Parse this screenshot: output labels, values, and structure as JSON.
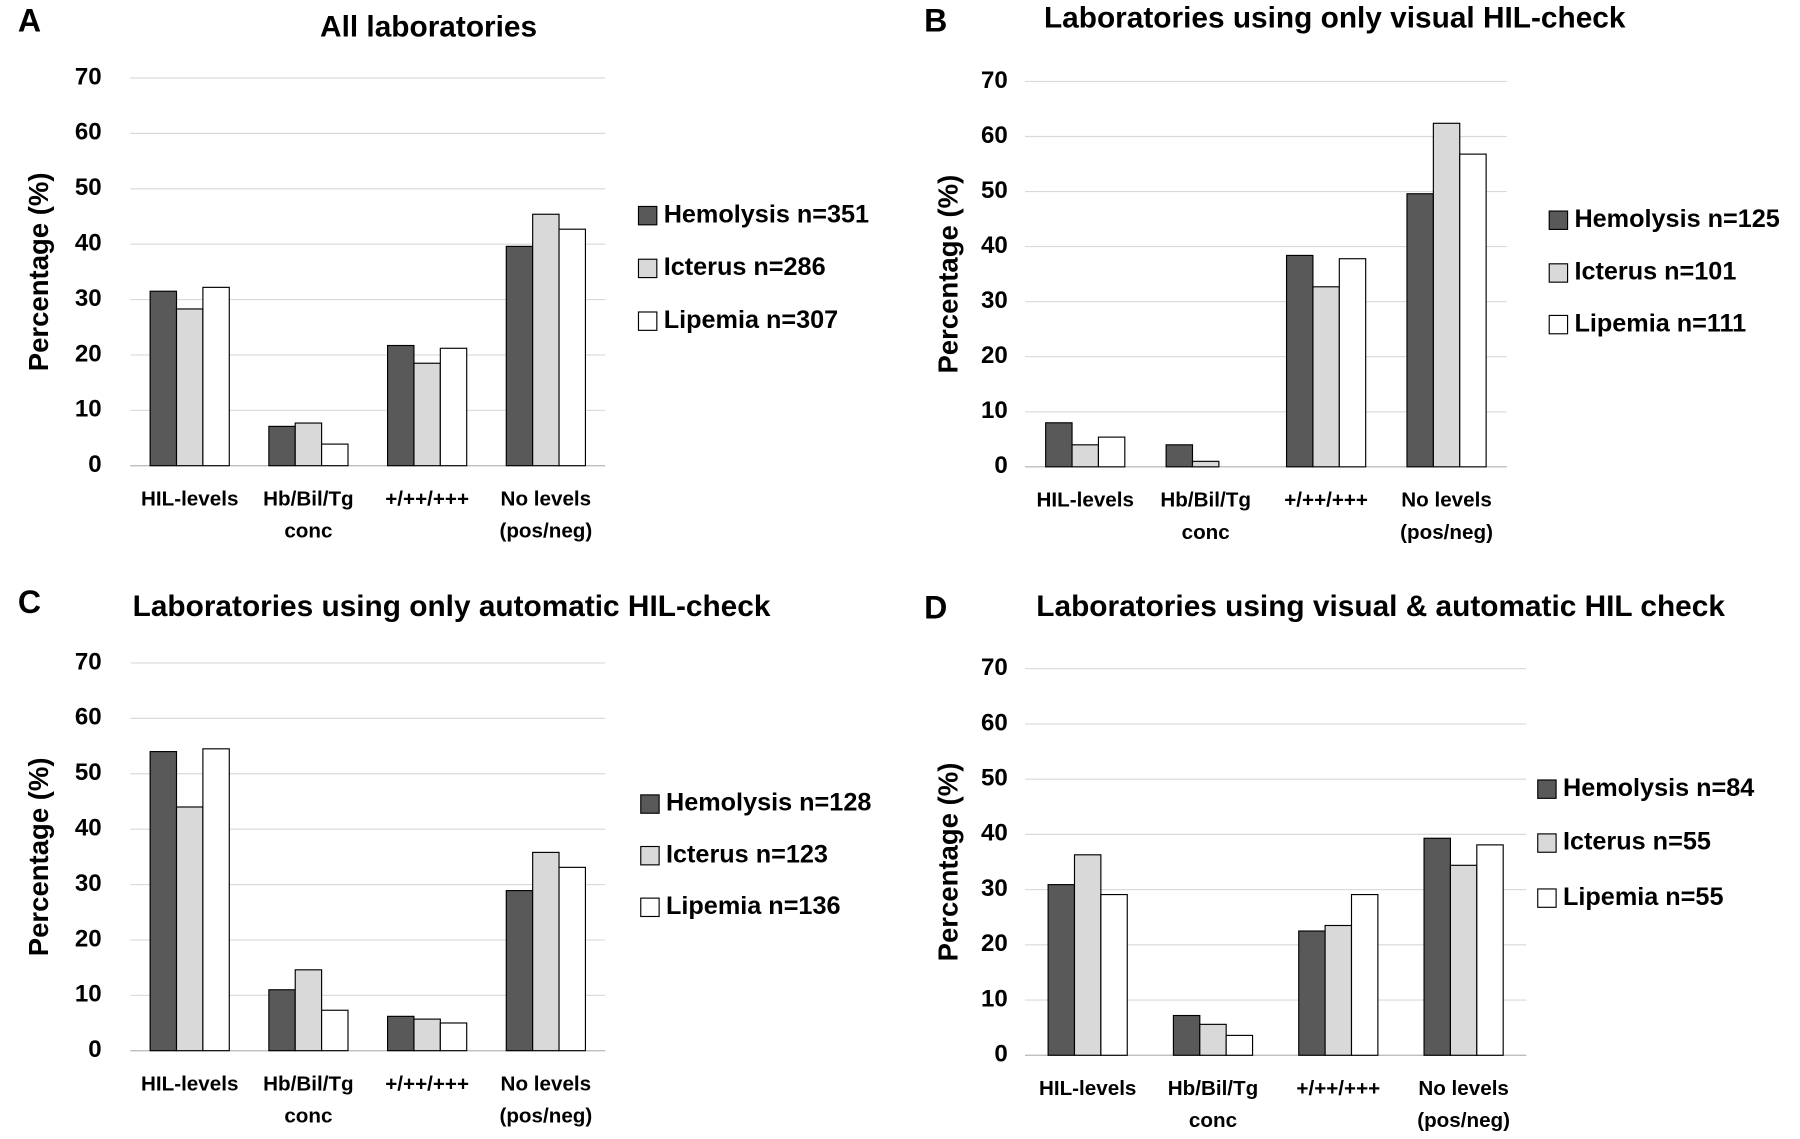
{
  "chart_data": [
    {
      "type": "bar",
      "panel": "A",
      "title": "All laboratories",
      "y_label": "Percentage (%)",
      "categories": [
        [
          "HIL-levels"
        ],
        [
          "Hb/Bil/Tg",
          "conc"
        ],
        [
          "+/++/+++"
        ],
        [
          "No levels",
          "(pos/neg)"
        ]
      ],
      "series": [
        {
          "name": "Hemolysis n=351",
          "color": "#595959",
          "values": [
            31.5,
            7.1,
            21.7,
            39.6
          ]
        },
        {
          "name": "Icterus n=286",
          "color": "#d9d9d9",
          "values": [
            28.3,
            7.7,
            18.5,
            45.4
          ]
        },
        {
          "name": "Lipemia n=307",
          "color": "#ffffff",
          "values": [
            32.2,
            3.9,
            21.2,
            42.7
          ]
        }
      ],
      "ylim": [
        0,
        70
      ],
      "yticks": [
        0,
        10,
        20,
        30,
        40,
        50,
        60,
        70
      ],
      "grid": true,
      "legend": "right"
    },
    {
      "type": "bar",
      "panel": "B",
      "title": "Laboratories using only visual HIL-check",
      "y_label": "Percentage (%)",
      "categories": [
        [
          "HIL-levels"
        ],
        [
          "Hb/Bil/Tg",
          "conc"
        ],
        [
          "+/++/+++"
        ],
        [
          "No levels",
          "(pos/neg)"
        ]
      ],
      "series": [
        {
          "name": "Hemolysis n=125",
          "color": "#595959",
          "values": [
            8.0,
            4.0,
            38.4,
            49.6
          ]
        },
        {
          "name": "Icterus n=101",
          "color": "#d9d9d9",
          "values": [
            4.0,
            1.0,
            32.7,
            62.4
          ]
        },
        {
          "name": "Lipemia n=111",
          "color": "#ffffff",
          "values": [
            5.4,
            0,
            37.8,
            56.8
          ]
        }
      ],
      "ylim": [
        0,
        70
      ],
      "yticks": [
        0,
        10,
        20,
        30,
        40,
        50,
        60,
        70
      ],
      "grid": true,
      "legend": "right"
    },
    {
      "type": "bar",
      "panel": "C",
      "title": "Laboratories using only automatic HIL-check",
      "y_label": "Percentage (%)",
      "categories": [
        [
          "HIL-levels"
        ],
        [
          "Hb/Bil/Tg",
          "conc"
        ],
        [
          "+/++/+++"
        ],
        [
          "No levels",
          "(pos/neg)"
        ]
      ],
      "series": [
        {
          "name": "Hemolysis n=128",
          "color": "#595959",
          "values": [
            54.0,
            11.0,
            6.2,
            28.9
          ]
        },
        {
          "name": "Icterus n=123",
          "color": "#d9d9d9",
          "values": [
            44.0,
            14.6,
            5.7,
            35.8
          ]
        },
        {
          "name": "Lipemia n=136",
          "color": "#ffffff",
          "values": [
            54.5,
            7.3,
            5.0,
            33.1
          ]
        }
      ],
      "ylim": [
        0,
        70
      ],
      "yticks": [
        0,
        10,
        20,
        30,
        40,
        50,
        60,
        70
      ],
      "grid": true,
      "legend": "right"
    },
    {
      "type": "bar",
      "panel": "D",
      "title": "Laboratories using visual & automatic HIL check",
      "y_label": "Percentage (%)",
      "categories": [
        [
          "HIL-levels"
        ],
        [
          "Hb/Bil/Tg",
          "conc"
        ],
        [
          "+/++/+++"
        ],
        [
          "No levels",
          "(pos/neg)"
        ]
      ],
      "series": [
        {
          "name": "Hemolysis n=84",
          "color": "#595959",
          "values": [
            30.9,
            7.2,
            22.5,
            39.3
          ]
        },
        {
          "name": "Icterus n=55",
          "color": "#d9d9d9",
          "values": [
            36.3,
            5.6,
            23.5,
            34.4
          ]
        },
        {
          "name": "Lipemia n=55",
          "color": "#ffffff",
          "values": [
            29.1,
            3.6,
            29.1,
            38.1
          ]
        }
      ],
      "ylim": [
        0,
        70
      ],
      "yticks": [
        0,
        10,
        20,
        30,
        40,
        50,
        60,
        70
      ],
      "grid": true,
      "legend": "right"
    }
  ]
}
